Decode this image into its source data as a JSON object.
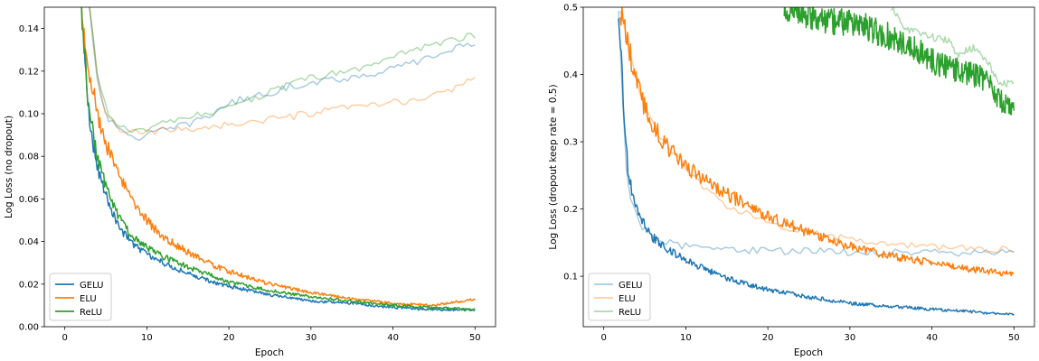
{
  "chart_data": [
    {
      "type": "line",
      "xlabel": "Epoch",
      "ylabel": "Log Loss (no dropout)",
      "xlim": [
        -2.5,
        52.5
      ],
      "ylim": [
        0,
        0.15
      ],
      "xticks": [
        0,
        10,
        20,
        30,
        40,
        50
      ],
      "xtick_labels": [
        "0",
        "10",
        "20",
        "30",
        "40",
        "50"
      ],
      "yticks": [
        0,
        0.02,
        0.04,
        0.06,
        0.08,
        0.1,
        0.12,
        0.14
      ],
      "ytick_labels": [
        "0.00",
        "0.02",
        "0.04",
        "0.06",
        "0.08",
        "0.10",
        "0.12",
        "0.14"
      ],
      "legend_position": "lower-left",
      "legend": [
        "GELU",
        "ELU",
        "ReLU"
      ],
      "series": [
        {
          "name": "GELU train",
          "role": "train",
          "color": "#1f77b4",
          "opacity": 1.0,
          "x": [
            2,
            3,
            4,
            5,
            6,
            7,
            8,
            10,
            12,
            15,
            18,
            20,
            25,
            30,
            35,
            40,
            45,
            50
          ],
          "y": [
            0.15,
            0.095,
            0.075,
            0.062,
            0.052,
            0.045,
            0.04,
            0.034,
            0.03,
            0.025,
            0.021,
            0.019,
            0.015,
            0.012,
            0.011,
            0.009,
            0.008,
            0.008
          ]
        },
        {
          "name": "ELU train",
          "role": "train",
          "color": "#ff7f0e",
          "opacity": 1.0,
          "x": [
            2,
            3,
            4,
            5,
            6,
            7,
            8,
            10,
            12,
            15,
            18,
            20,
            25,
            30,
            35,
            40,
            45,
            50
          ],
          "y": [
            0.15,
            0.12,
            0.1,
            0.086,
            0.076,
            0.068,
            0.061,
            0.05,
            0.042,
            0.035,
            0.029,
            0.026,
            0.02,
            0.016,
            0.013,
            0.011,
            0.01,
            0.013
          ]
        },
        {
          "name": "ReLU train",
          "role": "train",
          "color": "#2ca02c",
          "opacity": 1.0,
          "x": [
            2,
            3,
            4,
            5,
            6,
            7,
            8,
            10,
            12,
            15,
            18,
            20,
            25,
            30,
            35,
            40,
            45,
            50
          ],
          "y": [
            0.15,
            0.1,
            0.08,
            0.066,
            0.056,
            0.049,
            0.043,
            0.037,
            0.033,
            0.028,
            0.024,
            0.021,
            0.017,
            0.014,
            0.012,
            0.01,
            0.009,
            0.008
          ]
        },
        {
          "name": "GELU test",
          "role": "test",
          "color": "#1f77b4",
          "opacity": 0.4,
          "x": [
            3,
            4,
            5,
            6,
            7,
            8,
            9,
            10,
            12,
            15,
            18,
            20,
            25,
            30,
            35,
            40,
            45,
            50
          ],
          "y": [
            0.15,
            0.115,
            0.1,
            0.094,
            0.091,
            0.09,
            0.089,
            0.09,
            0.092,
            0.095,
            0.1,
            0.105,
            0.11,
            0.115,
            0.117,
            0.121,
            0.127,
            0.134
          ]
        },
        {
          "name": "ELU test",
          "role": "test",
          "color": "#ff7f0e",
          "opacity": 0.4,
          "x": [
            3,
            4,
            5,
            6,
            7,
            8,
            9,
            10,
            12,
            15,
            18,
            20,
            25,
            30,
            35,
            40,
            45,
            50
          ],
          "y": [
            0.15,
            0.115,
            0.1,
            0.095,
            0.092,
            0.091,
            0.091,
            0.091,
            0.092,
            0.093,
            0.094,
            0.095,
            0.097,
            0.1,
            0.103,
            0.105,
            0.108,
            0.117
          ]
        },
        {
          "name": "ReLU test",
          "role": "test",
          "color": "#2ca02c",
          "opacity": 0.4,
          "x": [
            3,
            4,
            5,
            6,
            7,
            8,
            9,
            10,
            12,
            15,
            18,
            20,
            25,
            30,
            35,
            40,
            45,
            50
          ],
          "y": [
            0.15,
            0.118,
            0.103,
            0.096,
            0.093,
            0.092,
            0.092,
            0.093,
            0.095,
            0.098,
            0.101,
            0.104,
            0.11,
            0.117,
            0.12,
            0.127,
            0.133,
            0.137
          ]
        }
      ]
    },
    {
      "type": "line",
      "xlabel": "Epoch",
      "ylabel": "Log Loss (dropout keep rate = 0.5)",
      "xlim": [
        -2.5,
        52.5
      ],
      "ylim": [
        0.025,
        0.5
      ],
      "xticks": [
        0,
        10,
        20,
        30,
        40,
        50
      ],
      "xtick_labels": [
        "0",
        "10",
        "20",
        "30",
        "40",
        "50"
      ],
      "yticks": [
        0.1,
        0.2,
        0.3,
        0.4,
        0.5
      ],
      "ytick_labels": [
        "0.1",
        "0.2",
        "0.3",
        "0.4",
        "0.5"
      ],
      "legend_position": "lower-left",
      "legend": [
        "GELU",
        "ELU",
        "ReLU"
      ],
      "series": [
        {
          "name": "GELU train",
          "role": "train",
          "color": "#1f77b4",
          "opacity": 1.0,
          "x": [
            1.8,
            2.5,
            3,
            4,
            5,
            6,
            8,
            10,
            12,
            15,
            20,
            25,
            30,
            35,
            40,
            45,
            50
          ],
          "y": [
            0.5,
            0.33,
            0.25,
            0.2,
            0.175,
            0.157,
            0.138,
            0.125,
            0.112,
            0.097,
            0.08,
            0.069,
            0.06,
            0.055,
            0.051,
            0.047,
            0.043
          ]
        },
        {
          "name": "ELU train",
          "role": "train",
          "color": "#ff7f0e",
          "opacity": 1.0,
          "x": [
            2,
            3,
            4,
            5,
            6,
            7,
            8,
            10,
            12,
            15,
            20,
            25,
            30,
            35,
            40,
            45,
            50
          ],
          "y": [
            0.5,
            0.44,
            0.39,
            0.35,
            0.325,
            0.305,
            0.29,
            0.265,
            0.245,
            0.222,
            0.19,
            0.165,
            0.145,
            0.13,
            0.12,
            0.11,
            0.103
          ]
        },
        {
          "name": "ReLU train",
          "role": "train",
          "color": "#2ca02c",
          "opacity": 1.0,
          "x": [
            22,
            25,
            28,
            30,
            32,
            35,
            38,
            40,
            42,
            45,
            47,
            48,
            50
          ],
          "y": [
            0.5,
            0.49,
            0.48,
            0.475,
            0.47,
            0.455,
            0.44,
            0.42,
            0.41,
            0.4,
            0.39,
            0.365,
            0.345
          ]
        },
        {
          "name": "GELU test",
          "role": "test",
          "color": "#1f77b4",
          "opacity": 0.4,
          "x": [
            1.8,
            2.5,
            3,
            4,
            5,
            6,
            8,
            10,
            15,
            20,
            25,
            30,
            35,
            40,
            45,
            50
          ],
          "y": [
            0.5,
            0.3,
            0.23,
            0.185,
            0.17,
            0.16,
            0.15,
            0.145,
            0.14,
            0.138,
            0.137,
            0.136,
            0.135,
            0.135,
            0.135,
            0.134
          ]
        },
        {
          "name": "ELU test",
          "role": "test",
          "color": "#ff7f0e",
          "opacity": 0.4,
          "x": [
            2,
            3,
            4,
            5,
            6,
            7,
            8,
            10,
            12,
            15,
            20,
            25,
            30,
            35,
            40,
            45,
            50
          ],
          "y": [
            0.5,
            0.44,
            0.39,
            0.35,
            0.325,
            0.305,
            0.29,
            0.26,
            0.235,
            0.205,
            0.178,
            0.164,
            0.155,
            0.148,
            0.143,
            0.14,
            0.14
          ]
        },
        {
          "name": "ReLU test",
          "role": "test",
          "color": "#2ca02c",
          "opacity": 0.4,
          "x": [
            35,
            37,
            38,
            40,
            42,
            43,
            45,
            47,
            48,
            50
          ],
          "y": [
            0.5,
            0.465,
            0.465,
            0.455,
            0.45,
            0.43,
            0.44,
            0.415,
            0.39,
            0.385
          ]
        }
      ]
    }
  ]
}
